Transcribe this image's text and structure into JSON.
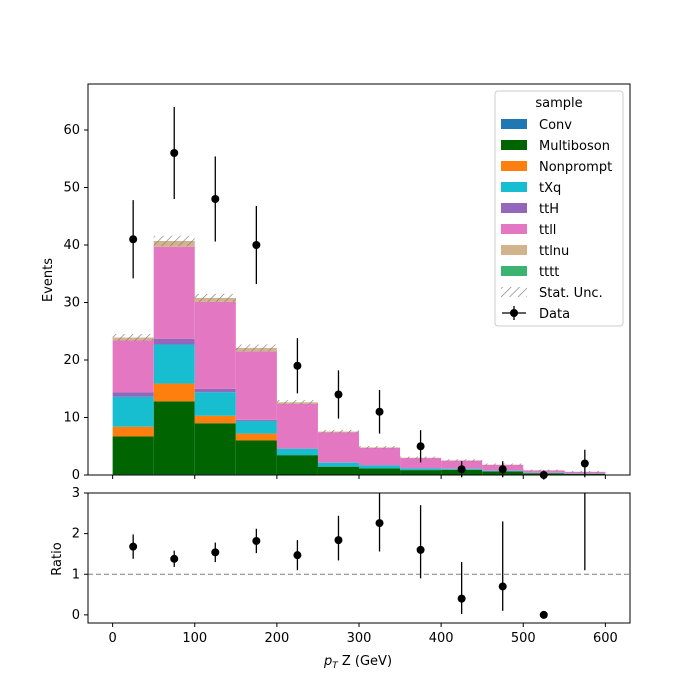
{
  "chart_data": [
    {
      "type": "stacked-histogram",
      "ylabel": "Events",
      "xlim": [
        -30,
        630
      ],
      "ylim": [
        0,
        68
      ],
      "yticks": [
        0,
        10,
        20,
        30,
        40,
        50,
        60
      ],
      "bin_edges": [
        0,
        50,
        100,
        150,
        200,
        250,
        300,
        350,
        400,
        450,
        500,
        550,
        600
      ],
      "legend_title": "sample",
      "legend_placement": "top-right",
      "series": [
        {
          "name": "Conv",
          "color": "#1f77b4",
          "values": [
            0.1,
            0.1,
            0.1,
            0.1,
            0.05,
            0.05,
            0.05,
            0.05,
            0.0,
            0.0,
            0.0,
            0.0
          ]
        },
        {
          "name": "Multiboson",
          "color": "#006400",
          "values": [
            6.6,
            12.7,
            8.9,
            5.9,
            3.4,
            1.4,
            1.1,
            0.8,
            0.9,
            0.6,
            0.3,
            0.2
          ]
        },
        {
          "name": "Nonprompt",
          "color": "#ff7f0e",
          "values": [
            1.7,
            3.1,
            1.3,
            1.2,
            0.0,
            0.0,
            0.0,
            0.0,
            0.0,
            0.0,
            0.0,
            0.0
          ]
        },
        {
          "name": "tXq",
          "color": "#17becf",
          "values": [
            5.2,
            6.8,
            4.1,
            2.2,
            1.1,
            0.7,
            0.5,
            0.3,
            0.2,
            0.15,
            0.1,
            0.05
          ]
        },
        {
          "name": "ttH",
          "color": "#9467bd",
          "values": [
            0.8,
            1.0,
            0.6,
            0.2,
            0.1,
            0.05,
            0.05,
            0.0,
            0.0,
            0.0,
            0.0,
            0.0
          ]
        },
        {
          "name": "ttll",
          "color": "#e377c2",
          "values": [
            9.0,
            16.0,
            15.1,
            11.9,
            7.7,
            5.2,
            3.0,
            1.8,
            1.4,
            1.0,
            0.4,
            0.3
          ]
        },
        {
          "name": "ttlnu",
          "color": "#d2b48c",
          "values": [
            0.5,
            1.0,
            0.7,
            0.6,
            0.3,
            0.15,
            0.1,
            0.05,
            0.05,
            0.05,
            0.0,
            0.0
          ]
        },
        {
          "name": "tttt",
          "color": "#3cb371",
          "values": [
            0.0,
            0.0,
            0.0,
            0.0,
            0.0,
            0.0,
            0.0,
            0.0,
            0.0,
            0.0,
            0.0,
            0.0
          ]
        }
      ],
      "stat_unc": {
        "name": "Stat. Unc.",
        "half_width": [
          0.6,
          0.9,
          0.7,
          0.6,
          0.4,
          0.3,
          0.25,
          0.2,
          0.2,
          0.2,
          0.15,
          0.15
        ]
      },
      "data": {
        "name": "Data",
        "x": [
          25,
          75,
          125,
          175,
          225,
          275,
          325,
          375,
          425,
          475,
          525,
          575
        ],
        "y": [
          41,
          56,
          48,
          40,
          19,
          14,
          11,
          5,
          1,
          1,
          0,
          2
        ],
        "yerr": [
          6.8,
          8.0,
          7.4,
          6.8,
          4.8,
          4.2,
          3.8,
          2.8,
          1.4,
          1.4,
          0.8,
          2.4
        ]
      }
    },
    {
      "type": "scatter",
      "xlabel": "$p_T$ Z (GeV)",
      "xlabel_main": "p",
      "xlabel_sub": "T",
      "xlabel_rest": " Z (GeV)",
      "ylabel": "Ratio",
      "xlim": [
        -30,
        630
      ],
      "ylim": [
        -0.2,
        3
      ],
      "yticks": [
        0,
        1,
        2,
        3
      ],
      "xticks": [
        0,
        100,
        200,
        300,
        400,
        500,
        600
      ],
      "reference_line": 1,
      "x": [
        25,
        75,
        125,
        175,
        225,
        275,
        325,
        375,
        425,
        475,
        525,
        575
      ],
      "y": [
        1.68,
        1.38,
        1.54,
        1.82,
        1.47,
        1.84,
        2.26,
        1.6,
        0.4,
        0.7,
        0.0,
        3.5
      ],
      "err_low": [
        0.3,
        0.2,
        0.24,
        0.3,
        0.37,
        0.5,
        0.7,
        0.7,
        0.38,
        0.6,
        0.0,
        2.4
      ],
      "err_high": [
        0.3,
        0.2,
        0.24,
        0.3,
        0.37,
        0.6,
        0.8,
        1.1,
        0.9,
        1.6,
        0.0,
        2.4
      ]
    }
  ]
}
